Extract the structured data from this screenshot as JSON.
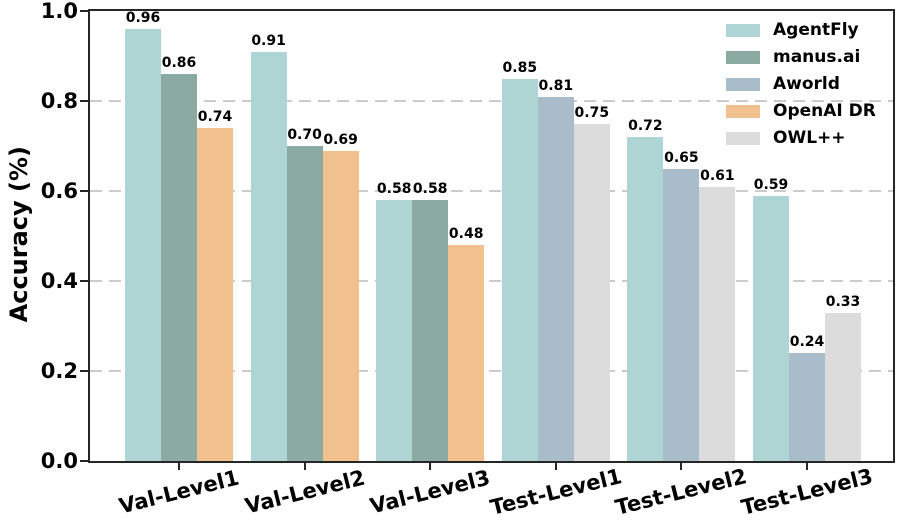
{
  "figure": {
    "background_color": "#ffffff",
    "axis_color": "#262626",
    "grid_color": "#cbcbcb",
    "text_color": "#000000"
  },
  "chart_data": {
    "type": "bar",
    "title": "",
    "xlabel": "",
    "ylabel": "Accuracy (%)",
    "ylim": [
      0.0,
      1.0
    ],
    "yticks": [
      0.0,
      0.2,
      0.4,
      0.6,
      0.8,
      1.0
    ],
    "ytick_labels": [
      "0.0",
      "0.2",
      "0.4",
      "0.6",
      "0.8",
      "1.0"
    ],
    "grid": {
      "axis": "y",
      "style": "dashed",
      "color": "#cbcbcb"
    },
    "legend": {
      "position": "upper-right",
      "entries": [
        "AgentFly",
        "manus.ai",
        "Aworld",
        "OpenAI DR",
        "OWL++"
      ]
    },
    "categories": [
      "Val-Level1",
      "Val-Level2",
      "Val-Level3",
      "Test-Level1",
      "Test-Level2",
      "Test-Level3"
    ],
    "series": [
      {
        "name": "AgentFly",
        "color": "#aed5d4",
        "values": [
          0.96,
          0.91,
          0.58,
          0.85,
          0.72,
          0.59
        ]
      },
      {
        "name": "manus.ai",
        "color": "#8baaa1",
        "values": [
          0.86,
          0.7,
          0.58,
          null,
          null,
          null
        ]
      },
      {
        "name": "Aworld",
        "color": "#a9bcca",
        "values": [
          null,
          null,
          null,
          0.81,
          0.65,
          0.24
        ]
      },
      {
        "name": "OpenAI DR",
        "color": "#f0c08e",
        "values": [
          0.74,
          0.69,
          0.48,
          null,
          null,
          null
        ]
      },
      {
        "name": "OWL++",
        "color": "#dcdcdc",
        "values": [
          null,
          null,
          null,
          0.75,
          0.61,
          0.33
        ]
      }
    ],
    "bar_value_labels": [
      {
        "category": "Val-Level1",
        "labels": [
          "0.96",
          "0.86",
          "0.74"
        ]
      },
      {
        "category": "Val-Level2",
        "labels": [
          "0.91",
          "0.70",
          "0.69"
        ]
      },
      {
        "category": "Val-Level3",
        "labels": [
          "0.58",
          "0.58",
          "0.48"
        ]
      },
      {
        "category": "Test-Level1",
        "labels": [
          "0.85",
          "0.81",
          "0.75"
        ]
      },
      {
        "category": "Test-Level2",
        "labels": [
          "0.72",
          "0.65",
          "0.61"
        ]
      },
      {
        "category": "Test-Level3",
        "labels": [
          "0.59",
          "0.24",
          "0.33"
        ]
      }
    ]
  }
}
